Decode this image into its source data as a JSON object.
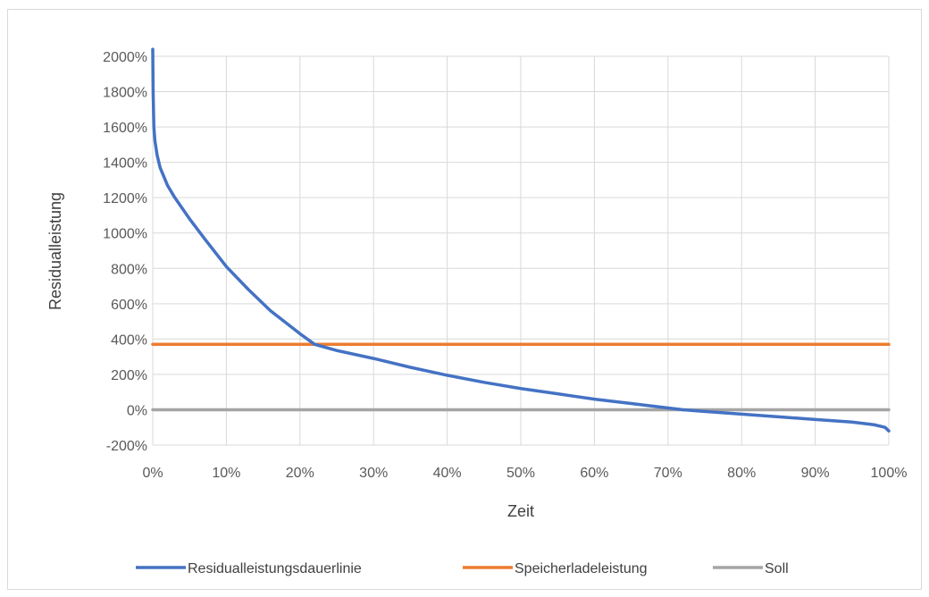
{
  "chart_data": {
    "type": "line",
    "title": "",
    "xlabel": "Zeit",
    "ylabel": "Residualleistung",
    "xlim": [
      0,
      100
    ],
    "ylim": [
      -200,
      2000
    ],
    "x_ticks": [
      "0%",
      "10%",
      "20%",
      "30%",
      "40%",
      "50%",
      "60%",
      "70%",
      "80%",
      "90%",
      "100%"
    ],
    "y_ticks": [
      "-200%",
      "0%",
      "200%",
      "400%",
      "600%",
      "800%",
      "1000%",
      "1200%",
      "1400%",
      "1600%",
      "1800%",
      "2000%"
    ],
    "grid": true,
    "legend_position": "bottom",
    "series": [
      {
        "name": "Residualleistungsdauerlinie",
        "color": "#4472c4",
        "x": [
          0,
          0.05,
          0.15,
          0.3,
          0.6,
          1,
          2,
          3,
          5,
          7,
          10,
          13,
          16,
          20,
          22,
          25,
          30,
          35,
          40,
          45,
          50,
          55,
          60,
          65,
          70,
          72,
          75,
          80,
          85,
          90,
          95,
          98,
          99.5,
          100
        ],
        "values": [
          2040,
          1800,
          1600,
          1520,
          1440,
          1370,
          1270,
          1200,
          1080,
          970,
          810,
          680,
          560,
          430,
          370,
          335,
          290,
          240,
          195,
          155,
          120,
          90,
          60,
          35,
          10,
          0,
          -10,
          -25,
          -40,
          -55,
          -70,
          -85,
          -100,
          -120
        ]
      },
      {
        "name": "Speicherladeleistung",
        "color": "#ed7d31",
        "x": [
          0,
          100
        ],
        "values": [
          370,
          370
        ]
      },
      {
        "name": "Soll",
        "color": "#a5a5a5",
        "x": [
          0,
          100
        ],
        "values": [
          0,
          0
        ]
      }
    ]
  }
}
